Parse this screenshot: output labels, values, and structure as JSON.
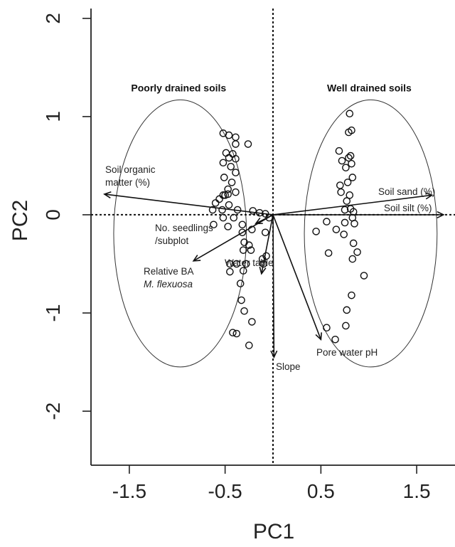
{
  "chart_data": {
    "type": "scatter",
    "xlabel": "PC1",
    "ylabel": "PC2",
    "xlim": [
      -1.9,
      1.9
    ],
    "ylim": [
      -2.55,
      2.1
    ],
    "x_ticks": [
      -1.5,
      -0.5,
      0.5,
      1.5
    ],
    "x_tick_labels": [
      "-1.5",
      "-0.5",
      "0.5",
      "1.5"
    ],
    "y_ticks": [
      -2,
      -1,
      0,
      1,
      2
    ],
    "y_tick_labels": [
      "-2",
      "-1",
      "0",
      "1",
      "2"
    ],
    "reference_lines": {
      "x": 0,
      "y": 0,
      "style": "dotted"
    },
    "grid": false,
    "groups": [
      {
        "label": "Poorly drained soils",
        "center": [
          -0.97,
          -0.19
        ],
        "radii": [
          0.9,
          1.36
        ]
      },
      {
        "label": "Well drained soils",
        "center": [
          1.02,
          -0.19
        ],
        "radii": [
          0.9,
          1.36
        ]
      }
    ],
    "vectors": [
      {
        "label": "Soil organic matter (%)",
        "lines": [
          "Soil organic",
          "matter (%)"
        ],
        "x": -1.76,
        "y": 0.21
      },
      {
        "label": "No. seedlings /subplot",
        "lines": [
          "No. seedlings",
          "/subplot"
        ],
        "x": -0.18,
        "y": -0.09
      },
      {
        "label": "Relative BA M. flexuosa",
        "lines": [
          "Relative BA",
          "M. flexuosa"
        ],
        "italic_line": 1,
        "x": -0.83,
        "y": -0.47
      },
      {
        "label": "Water table",
        "lines": [
          "Water table"
        ],
        "x": -0.12,
        "y": -0.6
      },
      {
        "label": "Slope",
        "lines": [
          "Slope"
        ],
        "x": 0.01,
        "y": -1.45
      },
      {
        "label": "Pore water pH",
        "lines": [
          "Pore water pH"
        ],
        "x": 0.5,
        "y": -1.27
      },
      {
        "label": "Soil sand (%)",
        "lines": [
          "Soil sand (%)"
        ],
        "x": 1.66,
        "y": 0.2
      },
      {
        "label": "Soil silt (%)",
        "lines": [
          "Soil silt (%)"
        ],
        "x": 1.78,
        "y": 0.0
      }
    ],
    "series": [
      {
        "points": [
          [
            -0.52,
            0.83
          ],
          [
            -0.46,
            0.81
          ],
          [
            -0.39,
            0.79
          ],
          [
            -0.26,
            0.72
          ],
          [
            -0.39,
            0.72
          ],
          [
            -0.49,
            0.63
          ],
          [
            -0.42,
            0.62
          ],
          [
            -0.46,
            0.58
          ],
          [
            -0.39,
            0.57
          ],
          [
            -0.52,
            0.53
          ],
          [
            -0.44,
            0.49
          ],
          [
            -0.39,
            0.43
          ],
          [
            -0.51,
            0.38
          ],
          [
            -0.43,
            0.33
          ],
          [
            -0.47,
            0.26
          ],
          [
            -0.39,
            0.23
          ],
          [
            -0.52,
            0.2
          ],
          [
            -0.5,
            0.2
          ],
          [
            -0.47,
            0.21
          ],
          [
            -0.56,
            0.16
          ],
          [
            -0.6,
            0.12
          ],
          [
            -0.46,
            0.1
          ],
          [
            -0.63,
            0.05
          ],
          [
            -0.53,
            0.05
          ],
          [
            -0.37,
            0.05
          ],
          [
            -0.52,
            -0.03
          ],
          [
            -0.41,
            -0.03
          ],
          [
            -0.21,
            0.04
          ],
          [
            -0.14,
            0.02
          ],
          [
            -0.08,
            0.01
          ],
          [
            -0.04,
            -0.03
          ],
          [
            -0.62,
            -0.1
          ],
          [
            -0.47,
            -0.12
          ],
          [
            -0.32,
            -0.1
          ],
          [
            -0.32,
            -0.18
          ],
          [
            -0.22,
            -0.15
          ],
          [
            -0.08,
            -0.18
          ],
          [
            -0.3,
            -0.28
          ],
          [
            -0.25,
            -0.31
          ],
          [
            -0.31,
            -0.36
          ],
          [
            -0.23,
            -0.36
          ],
          [
            -0.07,
            -0.42
          ],
          [
            -0.11,
            -0.45
          ],
          [
            -0.1,
            -0.5
          ],
          [
            -0.45,
            -0.5
          ],
          [
            -0.38,
            -0.5
          ],
          [
            -0.28,
            -0.5
          ],
          [
            -0.45,
            -0.58
          ],
          [
            -0.31,
            -0.57
          ],
          [
            -0.34,
            -0.7
          ],
          [
            -0.33,
            -0.87
          ],
          [
            -0.3,
            -0.98
          ],
          [
            -0.22,
            -1.09
          ],
          [
            -0.42,
            -1.2
          ],
          [
            -0.38,
            -1.21
          ],
          [
            -0.25,
            -1.33
          ],
          [
            0.8,
            1.03
          ],
          [
            0.82,
            0.86
          ],
          [
            0.79,
            0.84
          ],
          [
            0.69,
            0.65
          ],
          [
            0.81,
            0.6
          ],
          [
            0.79,
            0.58
          ],
          [
            0.72,
            0.55
          ],
          [
            0.82,
            0.52
          ],
          [
            0.76,
            0.48
          ],
          [
            0.83,
            0.38
          ],
          [
            0.78,
            0.33
          ],
          [
            0.7,
            0.3
          ],
          [
            0.71,
            0.23
          ],
          [
            0.8,
            0.2
          ],
          [
            0.77,
            0.14
          ],
          [
            0.81,
            0.06
          ],
          [
            0.84,
            0.03
          ],
          [
            0.75,
            0.05
          ],
          [
            0.83,
            -0.03
          ],
          [
            0.75,
            -0.08
          ],
          [
            0.56,
            -0.07
          ],
          [
            0.66,
            -0.15
          ],
          [
            0.85,
            -0.09
          ],
          [
            0.45,
            -0.17
          ],
          [
            0.74,
            -0.2
          ],
          [
            0.58,
            -0.39
          ],
          [
            0.84,
            -0.29
          ],
          [
            0.88,
            -0.38
          ],
          [
            0.83,
            -0.45
          ],
          [
            0.95,
            -0.62
          ],
          [
            0.82,
            -0.82
          ],
          [
            0.77,
            -0.97
          ],
          [
            0.76,
            -1.13
          ],
          [
            0.56,
            -1.15
          ],
          [
            0.65,
            -1.27
          ]
        ]
      }
    ]
  }
}
